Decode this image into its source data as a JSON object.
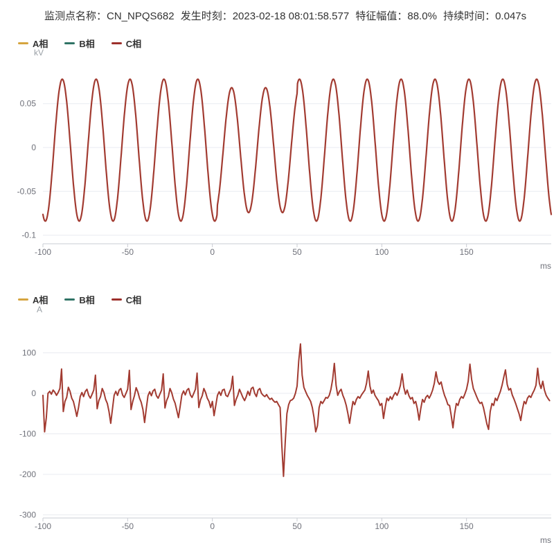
{
  "header": {
    "parts": [
      "监测点名称：CN_NPQS682",
      "发生时刻：2023-02-18 08:01:58.577",
      "特征幅值：88.0%",
      "持续时间：0.047s"
    ]
  },
  "legend": {
    "items": [
      {
        "name": "a-phase",
        "label": "A相",
        "color": "#d5a43e"
      },
      {
        "name": "b-phase",
        "label": "B相",
        "color": "#2f7365"
      },
      {
        "name": "c-phase",
        "label": "C相",
        "color": "#9d2f2b"
      }
    ]
  },
  "chart_data": [
    {
      "type": "line",
      "unit": "kV",
      "xlabel": "ms",
      "x_range": [
        -100,
        200
      ],
      "y_range": [
        -0.11,
        0.093
      ],
      "grid": true,
      "legend_position": "top-left",
      "x_ticks": [
        {
          "v": -100,
          "label": "-100"
        },
        {
          "v": -50,
          "label": "-50"
        },
        {
          "v": 0,
          "label": "0"
        },
        {
          "v": 50,
          "label": "50"
        },
        {
          "v": 100,
          "label": "100"
        },
        {
          "v": 150,
          "label": "150"
        }
      ],
      "y_ticks": [
        {
          "v": 0.05,
          "label": "0.05"
        },
        {
          "v": 0,
          "label": "0"
        },
        {
          "v": -0.05,
          "label": "-0.05"
        },
        {
          "v": -0.1,
          "label": "-0.1"
        }
      ],
      "visible_series": [
        "C相"
      ],
      "series": [
        {
          "name": "C相",
          "color": "#a23b31",
          "model": "sine",
          "amplitude": 0.081,
          "offset": -0.003,
          "period_ms": 20,
          "peak_at_ms": 11.4,
          "sag": {
            "start_ms": 3,
            "end_ms": 50,
            "factor": 0.88
          }
        }
      ]
    },
    {
      "type": "line",
      "unit": "A",
      "xlabel": "ms",
      "x_range": [
        -100,
        200
      ],
      "y_range": [
        -310,
        176
      ],
      "grid": true,
      "legend_position": "top-left",
      "x_ticks": [
        {
          "v": -100,
          "label": "-100"
        },
        {
          "v": -50,
          "label": "-50"
        },
        {
          "v": 0,
          "label": "0"
        },
        {
          "v": 50,
          "label": "50"
        },
        {
          "v": 100,
          "label": "100"
        },
        {
          "v": 150,
          "label": "150"
        }
      ],
      "y_ticks": [
        {
          "v": 100,
          "label": "100"
        },
        {
          "v": 0,
          "label": "0"
        },
        {
          "v": -100,
          "label": "-100"
        },
        {
          "v": -200,
          "label": "-200"
        },
        {
          "v": -300,
          "label": "-300"
        }
      ],
      "visible_series": [
        "C相"
      ],
      "series": [
        {
          "name": "C相",
          "color": "#a23b31",
          "x_start": -100,
          "x_step": 1,
          "values": [
            -5,
            -95,
            -60,
            0,
            5,
            -2,
            8,
            3,
            -5,
            2,
            12,
            60,
            -45,
            -20,
            -10,
            15,
            5,
            -12,
            -20,
            -38,
            -57,
            -35,
            -8,
            2,
            -8,
            5,
            10,
            -5,
            -12,
            -2,
            8,
            45,
            -38,
            -18,
            -8,
            12,
            2,
            -15,
            -25,
            -45,
            -74,
            -40,
            -5,
            5,
            -5,
            8,
            12,
            -4,
            -10,
            0,
            10,
            57,
            -40,
            -20,
            -6,
            14,
            4,
            -12,
            -22,
            -40,
            -72,
            -38,
            -6,
            4,
            -6,
            6,
            10,
            -6,
            -12,
            -2,
            8,
            48,
            -36,
            -18,
            -8,
            12,
            2,
            -14,
            -24,
            -42,
            -60,
            -32,
            -4,
            6,
            -4,
            8,
            12,
            -4,
            -10,
            0,
            10,
            50,
            -35,
            -16,
            -6,
            12,
            2,
            -12,
            -20,
            -35,
            -20,
            -55,
            -30,
            -5,
            4,
            -5,
            8,
            10,
            -5,
            -8,
            2,
            12,
            42,
            -30,
            -15,
            -5,
            10,
            0,
            -10,
            -18,
            -8,
            5,
            -5,
            12,
            15,
            0,
            -8,
            8,
            12,
            0,
            -5,
            -8,
            -3,
            -10,
            -15,
            -12,
            -18,
            -22,
            -20,
            -28,
            -35,
            -130,
            -205,
            -120,
            -50,
            -28,
            -18,
            -16,
            -12,
            0,
            18,
            80,
            122,
            45,
            15,
            5,
            -5,
            -12,
            -20,
            -35,
            -60,
            -95,
            -80,
            -35,
            -20,
            -25,
            -18,
            -10,
            -12,
            -5,
            10,
            35,
            74,
            20,
            -5,
            5,
            10,
            -5,
            -15,
            -30,
            -50,
            -74,
            -45,
            -20,
            -28,
            -15,
            -8,
            -12,
            -4,
            2,
            8,
            25,
            55,
            18,
            0,
            8,
            -5,
            -12,
            -18,
            -30,
            -25,
            -62,
            -35,
            -12,
            -18,
            -8,
            -15,
            -5,
            2,
            -5,
            5,
            20,
            48,
            15,
            -2,
            8,
            -6,
            -14,
            -10,
            -25,
            -20,
            -38,
            -66,
            -38,
            -15,
            -22,
            -10,
            -5,
            -12,
            -3,
            8,
            25,
            53,
            30,
            22,
            28,
            10,
            -5,
            -15,
            -28,
            -30,
            -55,
            -85,
            -50,
            -25,
            -30,
            -15,
            -8,
            -12,
            -2,
            10,
            30,
            72,
            35,
            12,
            2,
            -8,
            -18,
            -25,
            -22,
            -35,
            -55,
            -75,
            -89,
            -45,
            -25,
            -30,
            -12,
            -18,
            -6,
            5,
            20,
            40,
            58,
            22,
            8,
            12,
            -4,
            -14,
            -25,
            -38,
            -50,
            -67,
            -40,
            -20,
            -26,
            -12,
            -6,
            -10,
            0,
            8,
            20,
            62,
            25,
            12,
            30,
            8,
            -5,
            -12,
            -18
          ]
        }
      ]
    }
  ]
}
